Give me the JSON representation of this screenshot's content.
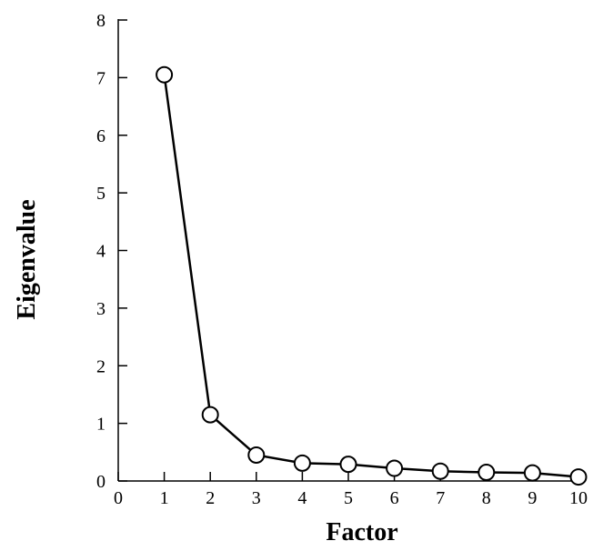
{
  "chart_data": {
    "type": "line",
    "title": "",
    "xlabel": "Factor",
    "ylabel": "Eigenvalue",
    "x": [
      1,
      2,
      3,
      4,
      5,
      6,
      7,
      8,
      9,
      10
    ],
    "series": [
      {
        "values": [
          7.05,
          1.15,
          0.45,
          0.31,
          0.29,
          0.22,
          0.17,
          0.15,
          0.14,
          0.07
        ]
      }
    ],
    "xlim": [
      0,
      10
    ],
    "ylim": [
      0,
      8
    ],
    "xticks": [
      "0",
      "1",
      "2",
      "3",
      "4",
      "5",
      "6",
      "7",
      "8",
      "9",
      "10"
    ],
    "yticks": [
      "0",
      "1",
      "2",
      "3",
      "4",
      "5",
      "6",
      "7",
      "8"
    ],
    "grid": false,
    "legend": "none",
    "marker": "open-circle",
    "line_color": "#000000",
    "marker_fill": "#ffffff"
  }
}
